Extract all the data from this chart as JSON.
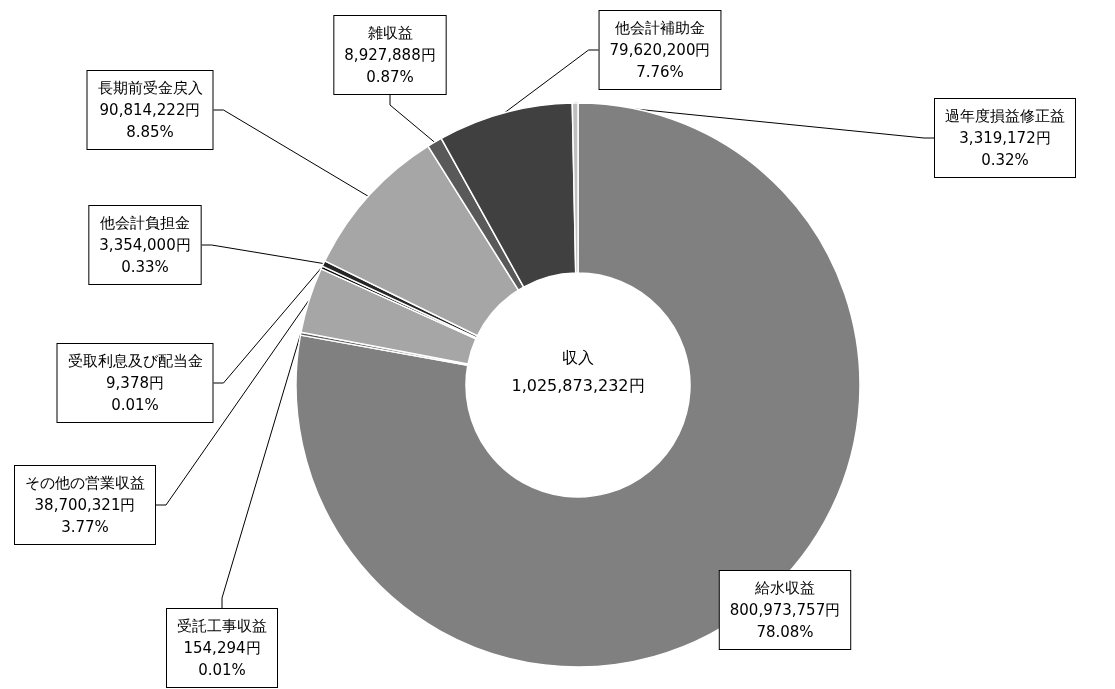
{
  "chart_data": {
    "type": "donut",
    "categories": [
      "給水収益",
      "受託工事収益",
      "その他の営業収益",
      "受取利息及び配当金",
      "他会計負担金",
      "長期前受金戻入",
      "雑収益",
      "他会計補助金",
      "過年度損益修正益"
    ],
    "values": [
      800973757,
      154294,
      38700321,
      9378,
      3354000,
      90814222,
      8927888,
      79620200,
      3319172
    ],
    "value_labels": [
      "800,973,757円\n78.08%",
      "154,294円\n0.01%",
      "38,700,321円\n3.77%",
      "9,378円\n0.01%",
      "3,354,000円\n0.33%",
      "90,814,222円\n8.85%",
      "8,927,888円\n0.87%",
      "79,620,200円\n7.76%",
      "3,319,172円\n0.32%"
    ],
    "colors": [
      "#808080",
      "#595959",
      "#a6a6a6",
      "#0d0d0d",
      "#262626",
      "#a6a6a6",
      "#595959",
      "#404040",
      "#bfbfbf"
    ],
    "annotations": [
      "収入",
      "1,025,873,232円"
    ],
    "legend": false
  }
}
